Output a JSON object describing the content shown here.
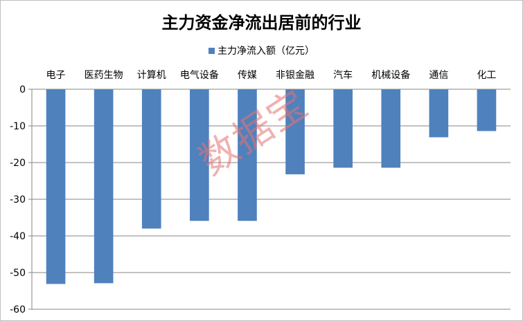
{
  "chart_data": {
    "type": "bar",
    "title": "主力资金净流出居前的行业",
    "categories": [
      "电子",
      "医药生物",
      "计算机",
      "电气设备",
      "传媒",
      "非银金融",
      "汽车",
      "机械设备",
      "通信",
      "化工"
    ],
    "series": [
      {
        "name": "主力净流入额（亿元）",
        "values": [
          -53.1,
          -52.9,
          -38.0,
          -35.9,
          -35.9,
          -23.2,
          -21.4,
          -21.4,
          -13.1,
          -11.4
        ],
        "color": "#4f81bd"
      }
    ],
    "ylim": [
      -60,
      0
    ],
    "yticks": [
      0,
      -10,
      -20,
      -30,
      -40,
      -50,
      -60
    ],
    "grid": true,
    "legend": "top-center",
    "xaxis_position": "top"
  },
  "watermark": "数据宝"
}
